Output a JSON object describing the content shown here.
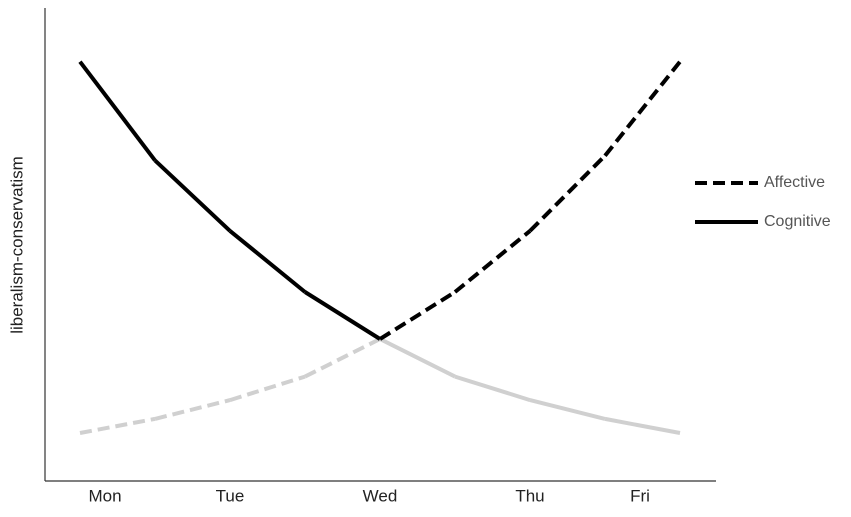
{
  "chart_data": {
    "type": "line",
    "y_label": "liberalism-conservatism",
    "categories": [
      "Mon",
      null,
      "Tue",
      null,
      "Wed",
      null,
      "Thu",
      null,
      "Fri"
    ],
    "ylim": [
      0,
      100
    ],
    "series": [
      {
        "name": "Affective",
        "dashed": true,
        "values": [
          10,
          13,
          17,
          22,
          30,
          40,
          53,
          69,
          89
        ],
        "segment_colors": [
          "#d0d0d0",
          "#d0d0d0",
          "#d0d0d0",
          "#d0d0d0",
          "#000000",
          "#000000",
          "#000000",
          "#000000"
        ]
      },
      {
        "name": "Cognitive",
        "dashed": false,
        "values": [
          89,
          68,
          53,
          40,
          30,
          22,
          17,
          13,
          10
        ],
        "segment_colors": [
          "#000000",
          "#000000",
          "#000000",
          "#000000",
          "#d0d0d0",
          "#d0d0d0",
          "#d0d0d0",
          "#d0d0d0"
        ]
      }
    ]
  }
}
